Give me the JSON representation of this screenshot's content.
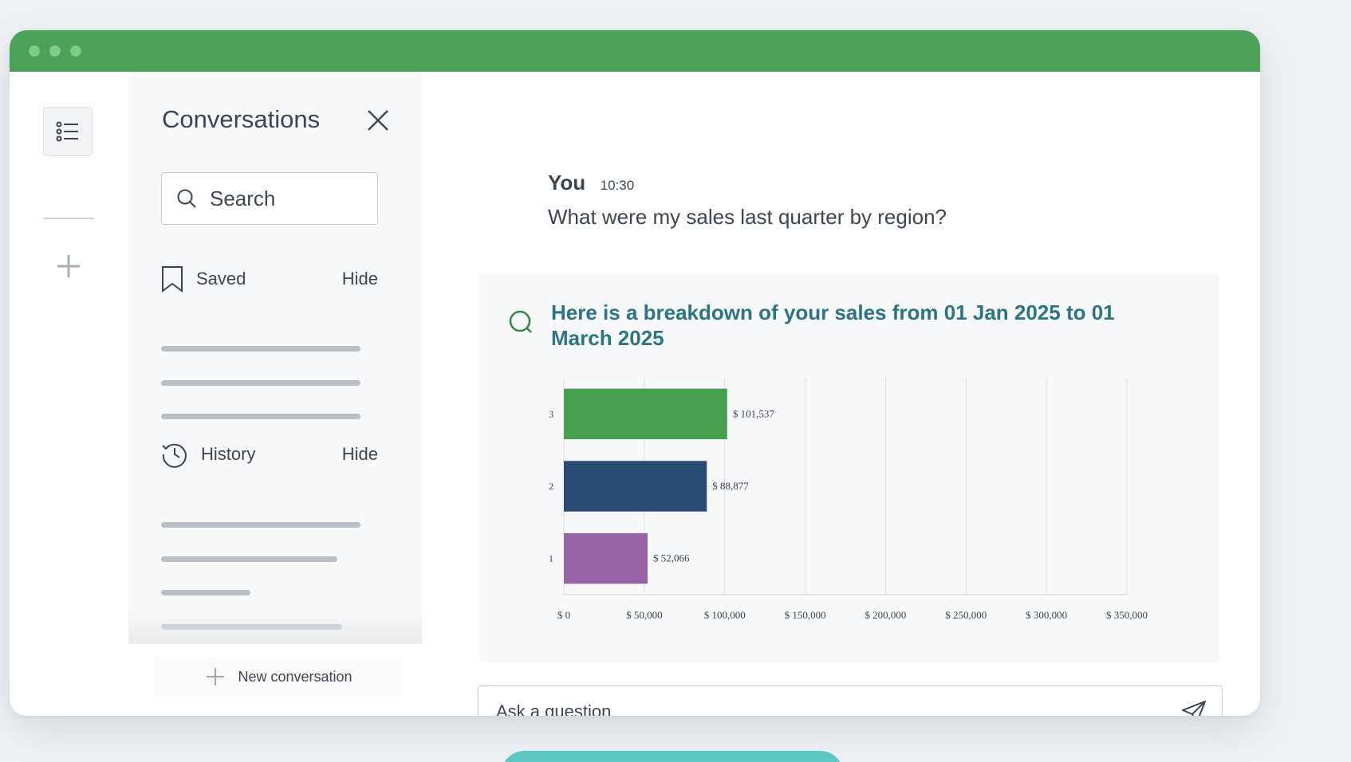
{
  "sidebar": {
    "title": "Conversations",
    "search_label": "Search",
    "saved": {
      "label": "Saved",
      "hide_label": "Hide"
    },
    "history": {
      "label": "History",
      "hide_label": "Hide"
    },
    "new_conversation_label": "New conversation"
  },
  "chat": {
    "user_name": "You",
    "user_time": "10:30",
    "user_message": "What were my sales last quarter by region?",
    "answer_title": "Here is a breakdown of your sales from 01 Jan 2025 to 01 March 2025"
  },
  "input": {
    "placeholder": "Ask a question"
  },
  "colors": {
    "titlebar": "#4aa157",
    "accent_text": "#2c7485",
    "bar_3": "#46a050",
    "bar_2": "#2a4b75",
    "bar_1": "#9563a6"
  },
  "chart_data": {
    "type": "bar",
    "orientation": "horizontal",
    "categories": [
      "3",
      "2",
      "1"
    ],
    "values": [
      101537,
      88877,
      52066
    ],
    "value_labels": [
      "$ 101,537",
      "$ 88,877",
      "$ 52,066"
    ],
    "x_ticks": [
      "$ 0",
      "$ 50,000",
      "$ 100,000",
      "$ 150,000",
      "$ 200,000",
      "$ 250,000",
      "$ 300,000",
      "$ 350,000"
    ],
    "xlim": [
      0,
      350000
    ],
    "grid": true
  }
}
